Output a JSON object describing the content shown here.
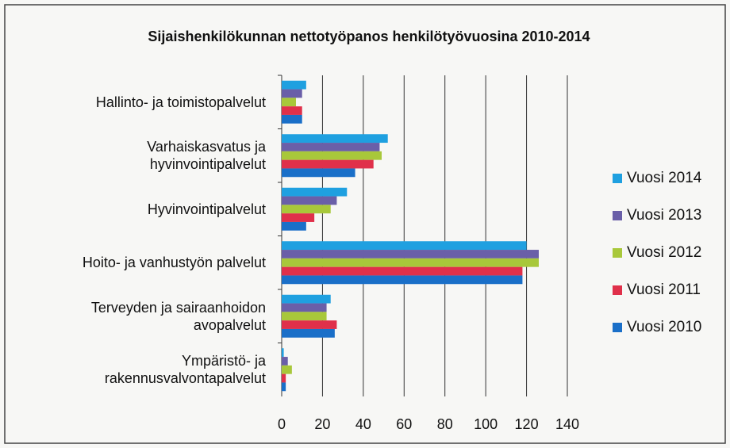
{
  "chart_data": {
    "type": "hbar",
    "title": "Sijaishenkilökunnan nettotyöpanos henkilötyövuosina  2010-2014",
    "categories": [
      "Hallinto- ja toimistopalvelut",
      "Varhaiskasvatus ja hyvinvointipalvelut",
      "Hyvinvointipalvelut",
      "Hoito- ja vanhustyön palvelut",
      "Terveyden ja sairaanhoidon avopalvelut",
      "Ympäristö- ja rakennusvalvontapalvelut"
    ],
    "series": [
      {
        "name": "Vuosi 2014",
        "color": "#1fa0e0",
        "values": [
          12,
          52,
          32,
          120,
          24,
          1
        ]
      },
      {
        "name": "Vuosi 2013",
        "color": "#6a5fa8",
        "values": [
          10,
          48,
          27,
          126,
          22,
          3
        ]
      },
      {
        "name": "Vuosi 2012",
        "color": "#a8c83a",
        "values": [
          7,
          49,
          24,
          126,
          22,
          5
        ]
      },
      {
        "name": "Vuosi 2011",
        "color": "#e0304a",
        "values": [
          10,
          45,
          16,
          118,
          27,
          2
        ]
      },
      {
        "name": "Vuosi 2010",
        "color": "#1a6fc8",
        "values": [
          10,
          36,
          12,
          118,
          26,
          2
        ]
      }
    ],
    "xlim": [
      0,
      140
    ],
    "xticks": [
      0,
      20,
      40,
      60,
      80,
      100,
      120,
      140
    ],
    "grid": true,
    "legend": "right"
  }
}
